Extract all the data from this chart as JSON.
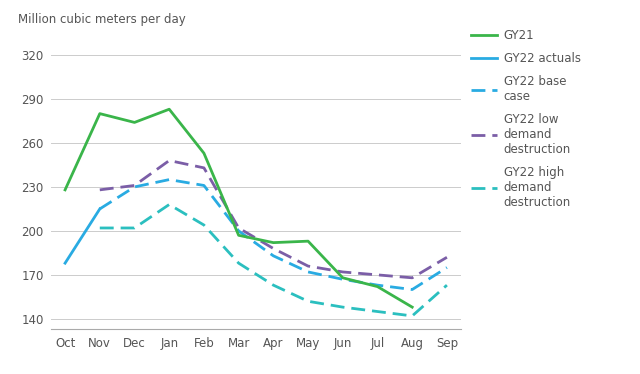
{
  "months": [
    "Oct",
    "Nov",
    "Dec",
    "Jan",
    "Feb",
    "Mar",
    "Apr",
    "May",
    "Jun",
    "Jul",
    "Aug",
    "Sep"
  ],
  "gy21": [
    228,
    280,
    274,
    283,
    253,
    197,
    192,
    193,
    168,
    162,
    148,
    null
  ],
  "gy22_actuals": [
    178,
    215,
    null,
    null,
    null,
    null,
    null,
    null,
    null,
    null,
    null,
    null
  ],
  "gy22_base": [
    null,
    215,
    230,
    235,
    231,
    200,
    183,
    172,
    167,
    163,
    160,
    175
  ],
  "gy22_low": [
    null,
    228,
    231,
    248,
    243,
    202,
    188,
    176,
    172,
    170,
    168,
    182
  ],
  "gy22_high": [
    null,
    202,
    202,
    218,
    204,
    178,
    163,
    152,
    148,
    145,
    142,
    163
  ],
  "ylabel": "Million cubic meters per day",
  "yticks": [
    140,
    170,
    200,
    230,
    260,
    290,
    320
  ],
  "ylim": [
    133,
    332
  ],
  "color_gy21": "#3ab54a",
  "color_gy22_actuals": "#29abe2",
  "color_gy22_base": "#29abe2",
  "color_gy22_low": "#7b5ea7",
  "color_gy22_high": "#2bbfbf",
  "legend_labels": [
    "GY21",
    "GY22 actuals",
    "GY22 base\ncase",
    "GY22 low\ndemand\ndestruction",
    "GY22 high\ndemand\ndestruction"
  ],
  "background_color": "#ffffff",
  "grid_color": "#cccccc",
  "tick_label_color": "#555555",
  "ylabel_color": "#555555"
}
